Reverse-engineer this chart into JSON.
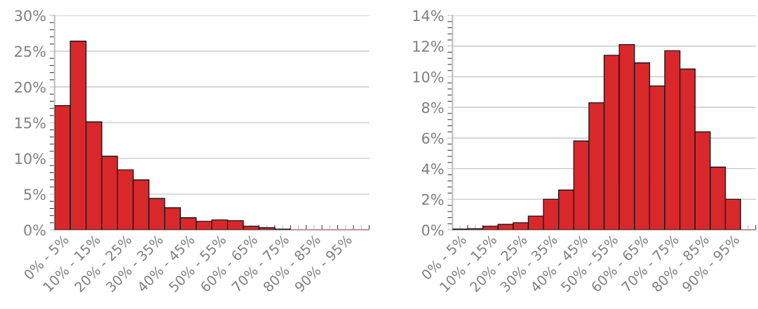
{
  "chart_data": [
    {
      "type": "bar",
      "categories": [
        "0% - 5%",
        null,
        "10% - 15%",
        null,
        "20% - 25%",
        null,
        "30% - 35%",
        null,
        "40% - 45%",
        null,
        "50% - 55%",
        null,
        "60% - 65%",
        null,
        "70% - 75%",
        null,
        "80% - 85%",
        null,
        "90% - 95%",
        null
      ],
      "values": [
        17.4,
        26.4,
        15.1,
        10.3,
        8.4,
        7.0,
        4.4,
        3.1,
        1.7,
        1.2,
        1.4,
        1.3,
        0.5,
        0.3,
        0.1,
        0,
        0,
        0,
        0,
        0
      ],
      "color": "#d9282b",
      "ylim": [
        0,
        30
      ],
      "yticks": [
        {
          "value": 0,
          "label": "0%"
        },
        {
          "value": 5,
          "label": "5%"
        },
        {
          "value": 10,
          "label": "10%"
        },
        {
          "value": 15,
          "label": "15%"
        },
        {
          "value": 20,
          "label": "20%"
        },
        {
          "value": 25,
          "label": "25%"
        },
        {
          "value": 30,
          "label": "30%"
        }
      ],
      "grid": "y"
    },
    {
      "type": "bar",
      "categories": [
        "0% - 5%",
        null,
        "10% - 15%",
        null,
        "20% - 25%",
        null,
        "30% - 35%",
        null,
        "40% - 45%",
        null,
        "50% - 55%",
        null,
        "60% - 65%",
        null,
        "70% - 75%",
        null,
        "80% - 85%",
        null,
        "90% - 95%",
        null
      ],
      "values": [
        0.05,
        0.08,
        0.24,
        0.36,
        0.47,
        0.9,
        2.0,
        2.6,
        5.8,
        8.3,
        11.4,
        12.1,
        10.9,
        9.4,
        11.7,
        10.5,
        6.4,
        4.1,
        2.0,
        0
      ],
      "color": "#d9282b",
      "ylim": [
        0,
        14
      ],
      "yticks": [
        {
          "value": 0,
          "label": "0%"
        },
        {
          "value": 2,
          "label": "2%"
        },
        {
          "value": 4,
          "label": "4%"
        },
        {
          "value": 6,
          "label": "6%"
        },
        {
          "value": 8,
          "label": "8%"
        },
        {
          "value": 10,
          "label": "10%"
        },
        {
          "value": 12,
          "label": "12%"
        },
        {
          "value": 14,
          "label": "14%"
        }
      ],
      "grid": "y"
    }
  ]
}
